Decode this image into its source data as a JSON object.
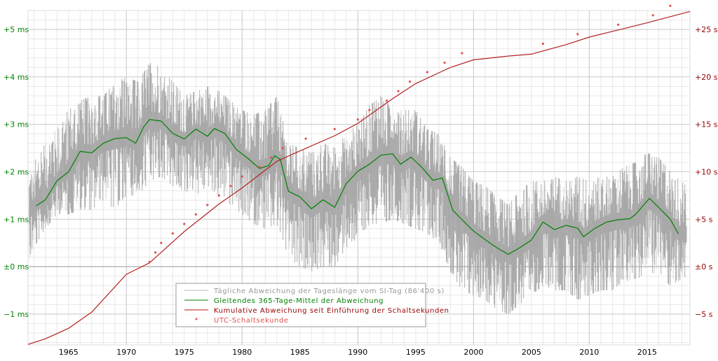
{
  "chart_data": {
    "type": "line",
    "title": "",
    "xlabel": "",
    "ylabel_left": "",
    "ylabel_right": "",
    "xlim": [
      1961.5,
      2018.7
    ],
    "ylim_left_ms": [
      -1.65,
      5.4
    ],
    "ylim_right_s": [
      -8.25,
      27.0
    ],
    "grid": true,
    "x_ticks": [
      1965,
      1970,
      1975,
      1980,
      1985,
      1990,
      1995,
      2000,
      2005,
      2010,
      2015
    ],
    "x_tick_labels": [
      "1965",
      "1970",
      "1975",
      "1980",
      "1985",
      "1990",
      "1995",
      "2000",
      "2005",
      "2010",
      "2015"
    ],
    "y_left_ticks": [
      5,
      4,
      3,
      2,
      1,
      0,
      -1
    ],
    "y_left_tick_labels": [
      "+5 ms",
      "+4 ms",
      "+3 ms",
      "+2 ms",
      "+1 ms",
      "±0 ms",
      "−1 ms"
    ],
    "y_right_ticks": [
      25,
      20,
      15,
      10,
      5,
      0,
      -5
    ],
    "y_right_tick_labels": [
      "+25 s",
      "+20 s",
      "+15 s",
      "+10 s",
      "+5 s",
      "±0 s",
      "−5 s"
    ],
    "colors": {
      "daily": "#a0a0a0",
      "moving_average": "#008000",
      "cumulative": "#b22222",
      "leap_second": "#e05050",
      "grid_minor": "#e8e8e8",
      "grid_major": "#cccccc",
      "left_axis_text": "#008000",
      "right_axis_text": "#990000"
    },
    "legend": {
      "placement": "bottom-center",
      "entries": [
        {
          "label": "Tägliche Abweichung der Tageslänge vom SI-Tag (86'400 s)",
          "color": "#999999",
          "marker": "line",
          "line_color": "#c8c8c8"
        },
        {
          "label": "Gleitendes 365-Tage-Mittel der Abweichung",
          "color": "#008000",
          "marker": "line",
          "line_color": "#008000"
        },
        {
          "label": "Kumulative Abweichung seit Einführung der Schaltsekunden",
          "color": "#990000",
          "marker": "line",
          "line_color": "#d04040"
        },
        {
          "label": "UTC-Schaltsekunde",
          "color": "#e05050",
          "marker": "dot",
          "line_color": "#e05050"
        }
      ]
    },
    "series": [
      {
        "name": "Tägliche Abweichung der Tageslänge vom SI-Tag (86'400 s)",
        "axis": "left",
        "unit": "ms",
        "kind": "daily-band",
        "x": [
          1961.6,
          1962,
          1963,
          1964,
          1965,
          1966,
          1967,
          1968,
          1969,
          1970,
          1971,
          1972,
          1973,
          1974,
          1975,
          1976,
          1977,
          1978,
          1979,
          1980,
          1981,
          1982,
          1983,
          1984,
          1985,
          1986,
          1987,
          1988,
          1989,
          1990,
          1991,
          1992,
          1993,
          1994,
          1995,
          1996,
          1997,
          1998,
          1999,
          2000,
          2001,
          2002,
          2003,
          2004,
          2005,
          2006,
          2007,
          2008,
          2009,
          2010,
          2011,
          2012,
          2013,
          2014,
          2015,
          2016,
          2017,
          2018.4
        ],
        "max": [
          1.8,
          2.2,
          2.6,
          3.0,
          3.3,
          3.5,
          3.6,
          3.6,
          3.9,
          4.0,
          3.9,
          4.3,
          4.2,
          3.9,
          3.6,
          3.7,
          3.8,
          3.7,
          3.5,
          3.3,
          3.2,
          3.3,
          3.6,
          2.6,
          2.5,
          2.4,
          2.6,
          2.5,
          2.8,
          3.0,
          3.4,
          3.6,
          3.4,
          3.3,
          3.3,
          2.9,
          2.8,
          2.3,
          2.1,
          1.8,
          1.7,
          1.5,
          1.3,
          1.6,
          1.8,
          1.8,
          1.9,
          1.8,
          1.9,
          1.8,
          1.9,
          1.9,
          2.1,
          2.2,
          2.4,
          2.3,
          2.0,
          1.7
        ],
        "min": [
          0.2,
          0.4,
          0.8,
          1.1,
          1.1,
          1.2,
          1.2,
          1.4,
          1.2,
          1.5,
          1.5,
          1.8,
          1.9,
          1.7,
          1.6,
          1.5,
          1.7,
          1.5,
          1.3,
          1.1,
          0.9,
          0.8,
          0.9,
          0.2,
          0.0,
          -0.1,
          0.0,
          0.0,
          0.4,
          0.6,
          0.9,
          0.9,
          1.0,
          0.9,
          0.8,
          0.7,
          0.5,
          -0.1,
          -0.5,
          -0.6,
          -0.7,
          -0.9,
          -1.0,
          -0.8,
          -0.6,
          -0.4,
          -0.5,
          -0.5,
          -0.7,
          -0.6,
          -0.5,
          -0.5,
          -0.3,
          -0.3,
          -0.1,
          -0.2,
          -0.4,
          -0.2
        ]
      },
      {
        "name": "Gleitendes 365-Tage-Mittel der Abweichung",
        "axis": "left",
        "unit": "ms",
        "x": [
          1962.2,
          1963,
          1964,
          1965,
          1966,
          1967,
          1968,
          1969,
          1970,
          1970.8,
          1971.5,
          1972,
          1973,
          1974,
          1975,
          1976,
          1977,
          1977.6,
          1978.5,
          1979.5,
          1980.5,
          1981.5,
          1982.3,
          1982.8,
          1983.3,
          1984,
          1985,
          1986,
          1987,
          1988,
          1989,
          1990,
          1991,
          1992,
          1993,
          1993.7,
          1994.6,
          1995.5,
          1996.5,
          1997.3,
          1998.2,
          1999,
          2000,
          2001,
          2002,
          2003,
          2004,
          2005,
          2006,
          2007,
          2008,
          2009,
          2009.5,
          2010.5,
          2011.5,
          2012.5,
          2013.5,
          2014,
          2015.2,
          2016,
          2017,
          2017.7
        ],
        "values": [
          1.28,
          1.41,
          1.81,
          2.0,
          2.43,
          2.4,
          2.6,
          2.7,
          2.72,
          2.6,
          2.95,
          3.1,
          3.07,
          2.81,
          2.69,
          2.9,
          2.75,
          2.91,
          2.81,
          2.47,
          2.28,
          2.07,
          2.13,
          2.34,
          2.26,
          1.59,
          1.47,
          1.22,
          1.41,
          1.25,
          1.75,
          2.01,
          2.16,
          2.35,
          2.38,
          2.16,
          2.31,
          2.1,
          1.82,
          1.87,
          1.19,
          0.99,
          0.75,
          0.57,
          0.4,
          0.26,
          0.4,
          0.56,
          0.94,
          0.78,
          0.87,
          0.81,
          0.63,
          0.81,
          0.94,
          0.99,
          1.01,
          1.1,
          1.44,
          1.25,
          1.0,
          0.69
        ]
      },
      {
        "name": "Kumulative Abweichung seit Einführung der Schaltsekunden",
        "axis": "right",
        "unit": "s",
        "x": [
          1961.5,
          1963,
          1965,
          1967,
          1970,
          1972,
          1975,
          1978,
          1980,
          1983,
          1985,
          1988,
          1990,
          1993,
          1995,
          1998,
          2000,
          2003,
          2005,
          2008,
          2010,
          2013,
          2015,
          2018.7
        ],
        "values": [
          -8.2,
          -7.6,
          -6.5,
          -4.8,
          -0.8,
          0.4,
          3.7,
          6.6,
          8.3,
          11.1,
          12.2,
          13.8,
          15.1,
          17.7,
          19.3,
          21.0,
          21.8,
          22.2,
          22.4,
          23.4,
          24.2,
          25.1,
          25.7,
          26.9
        ]
      },
      {
        "name": "UTC-Schaltsekunde",
        "axis": "right",
        "unit": "s",
        "kind": "points",
        "x": [
          1972.0,
          1972.5,
          1973.0,
          1974.0,
          1975.0,
          1976.0,
          1977.0,
          1978.0,
          1979.0,
          1980.0,
          1981.5,
          1982.5,
          1983.5,
          1985.5,
          1988.0,
          1990.0,
          1991.0,
          1992.5,
          1993.5,
          1994.5,
          1996.0,
          1997.5,
          1999.0,
          2006.0,
          2009.0,
          2012.5,
          2015.5,
          2017.0
        ],
        "values": [
          0.5,
          1.5,
          2.5,
          3.5,
          4.5,
          5.5,
          6.5,
          7.5,
          8.5,
          9.5,
          10.5,
          11.5,
          12.5,
          13.5,
          14.5,
          15.5,
          16.5,
          17.5,
          18.5,
          19.5,
          20.5,
          21.5,
          22.5,
          23.5,
          24.5,
          25.5,
          26.5,
          27.5
        ]
      }
    ]
  }
}
